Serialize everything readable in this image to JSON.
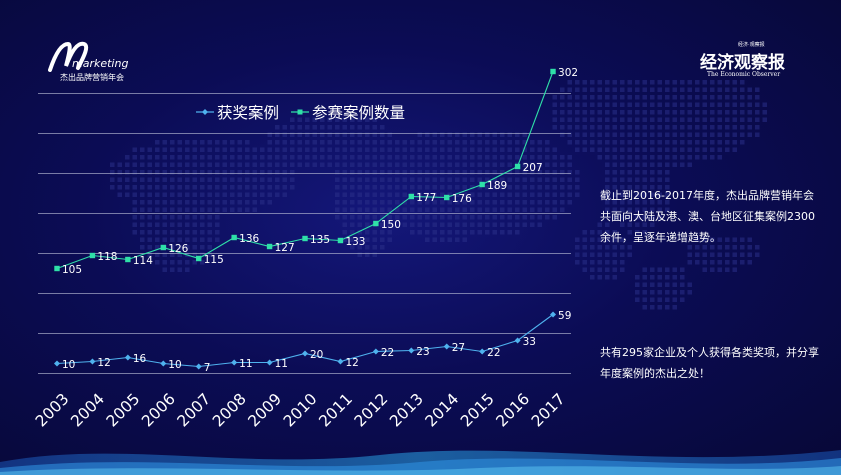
{
  "header": {
    "logo_left": {
      "brand": "marketing",
      "subtitle": "杰出品牌营销年会"
    },
    "logo_right": {
      "top": "经济·观察报",
      "name": "经济观察报",
      "en": "The Economic Observer"
    }
  },
  "notes": [
    "截止到2016-2017年度，杰出品牌营销年会共面向大陆及港、澳、台地区征集案例2300余件，呈逐年递增趋势。",
    "共有295家企业及个人获得各类奖项，并分享年度案例的杰出之处！"
  ],
  "colors": {
    "award": "#4fb2ee",
    "entries": "#2fe0a8",
    "grid": "#b8bcd6",
    "text": "#ffffff"
  },
  "chart_data": {
    "type": "line",
    "title": "",
    "xlabel": "",
    "ylabel": "",
    "grid": true,
    "legend": "top",
    "categories": [
      "2003",
      "2004",
      "2005",
      "2006",
      "2007",
      "2008",
      "2009",
      "2010",
      "2011",
      "2012",
      "2013",
      "2014",
      "2015",
      "2016",
      "2017"
    ],
    "series": [
      {
        "name": "获奖案例",
        "marker": "diamond",
        "values": [
          10,
          12,
          16,
          10,
          7,
          11,
          11,
          20,
          12,
          22,
          23,
          27,
          22,
          33,
          59
        ]
      },
      {
        "name": "参赛案例数量",
        "marker": "square",
        "values": [
          105,
          118,
          114,
          126,
          115,
          136,
          127,
          135,
          133,
          150,
          177,
          176,
          189,
          207,
          302
        ]
      }
    ]
  }
}
